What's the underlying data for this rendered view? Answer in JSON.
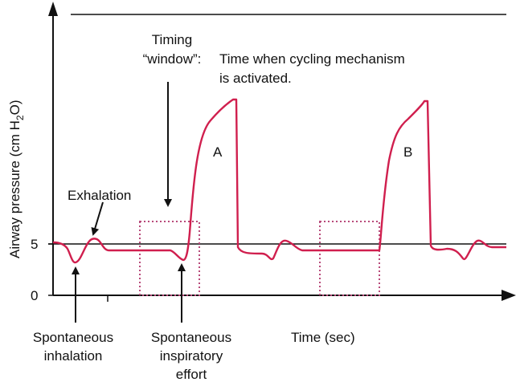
{
  "axes": {
    "y_label": "Airway pressure (cm H",
    "y_label_sub": "2",
    "y_label_end": "O)",
    "x_label": "Time (sec)",
    "y_ticks": [
      "5",
      "0"
    ]
  },
  "annotations": {
    "timing_line1": "Timing",
    "timing_line2": "“window”:",
    "cycling_line1": "Time when cycling mechanism",
    "cycling_line2": "is activated.",
    "exhalation": "Exhalation",
    "breath_a": "A",
    "breath_b": "B",
    "spont_inh_line1": "Spontaneous",
    "spont_inh_line2": "inhalation",
    "spont_eff_line1": "Spontaneous",
    "spont_eff_line2": "inspiratory",
    "spont_eff_line3": "effort"
  },
  "colors": {
    "curve": "#d01f4e",
    "window": "#b84a7a",
    "axis": "#111111"
  }
}
